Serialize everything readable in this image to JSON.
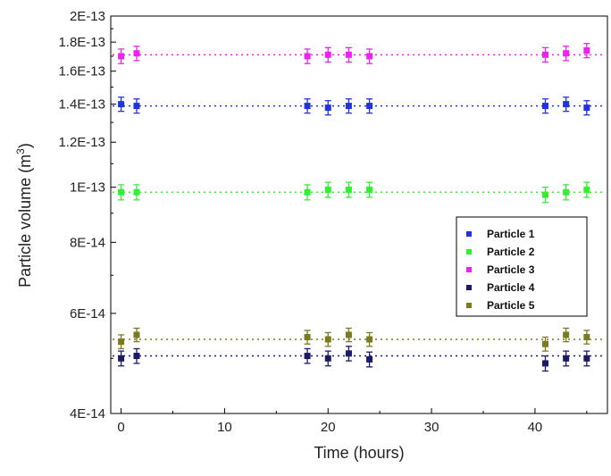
{
  "chart_data": {
    "type": "scatter",
    "title": "",
    "xlabel": "Time (hours)",
    "ylabel_main": "Particle volume (m",
    "ylabel_sup": "3",
    "ylabel_close": ")",
    "xlim": [
      -1,
      47
    ],
    "ylim": [
      4e-14,
      2e-13
    ],
    "y_scale": "log",
    "x_ticks": [
      0,
      10,
      20,
      30,
      40
    ],
    "x_tick_labels": [
      "0",
      "10",
      "20",
      "30",
      "40"
    ],
    "y_ticks": [
      4e-14,
      6e-14,
      8e-14,
      1e-13,
      1.2e-13,
      1.4e-13,
      1.6e-13,
      1.8e-13,
      2e-13
    ],
    "y_tick_labels": [
      "4E-14",
      "6E-14",
      "8E-14",
      "1E-13",
      "1.2E-13",
      "1.4E-13",
      "1.6E-13",
      "1.8E-13",
      "2E-13"
    ],
    "grid": false,
    "legend_position": "right",
    "x": [
      0,
      1.5,
      18,
      20,
      22,
      24,
      41,
      43,
      45
    ],
    "series": [
      {
        "name": "Particle 1",
        "color": "#2233dd",
        "mean": 1.39e-13,
        "values": [
          1.4e-13,
          1.39e-13,
          1.39e-13,
          1.38e-13,
          1.39e-13,
          1.39e-13,
          1.39e-13,
          1.4e-13,
          1.38e-13
        ],
        "error": [
          4e-15,
          4e-15,
          4e-15,
          4e-15,
          4e-15,
          4e-15,
          4e-15,
          4e-15,
          4e-15
        ]
      },
      {
        "name": "Particle 2",
        "color": "#33ee33",
        "mean": 9.8e-14,
        "values": [
          9.8e-14,
          9.8e-14,
          9.8e-14,
          9.9e-14,
          9.9e-14,
          9.9e-14,
          9.7e-14,
          9.8e-14,
          9.9e-14
        ],
        "error": [
          3e-15,
          3e-15,
          3e-15,
          3e-15,
          3e-15,
          3e-15,
          3e-15,
          3e-15,
          3e-15
        ]
      },
      {
        "name": "Particle 3",
        "color": "#ee22ee",
        "mean": 1.71e-13,
        "values": [
          1.7e-13,
          1.72e-13,
          1.7e-13,
          1.71e-13,
          1.71e-13,
          1.7e-13,
          1.71e-13,
          1.72e-13,
          1.74e-13
        ],
        "error": [
          5e-15,
          5e-15,
          5e-15,
          5e-15,
          5e-15,
          5e-15,
          5e-15,
          5e-15,
          5e-15
        ]
      },
      {
        "name": "Particle 4",
        "color": "#1a1a66",
        "mean": 5.05e-14,
        "values": [
          5e-14,
          5.05e-14,
          5.05e-14,
          5e-14,
          5.1e-14,
          4.98e-14,
          4.9e-14,
          5e-14,
          5e-14
        ],
        "error": [
          1.5e-15,
          1.5e-15,
          1.5e-15,
          1.5e-15,
          1.5e-15,
          1.5e-15,
          1.5e-15,
          1.5e-15,
          1.5e-15
        ]
      },
      {
        "name": "Particle 5",
        "color": "#7a7a1e",
        "mean": 5.4e-14,
        "values": [
          5.35e-14,
          5.5e-14,
          5.45e-14,
          5.4e-14,
          5.5e-14,
          5.4e-14,
          5.3e-14,
          5.5e-14,
          5.45e-14
        ],
        "error": [
          1.5e-15,
          1.5e-15,
          1.5e-15,
          1.5e-15,
          1.5e-15,
          1.5e-15,
          1.5e-15,
          1.5e-15,
          1.5e-15
        ]
      }
    ]
  }
}
